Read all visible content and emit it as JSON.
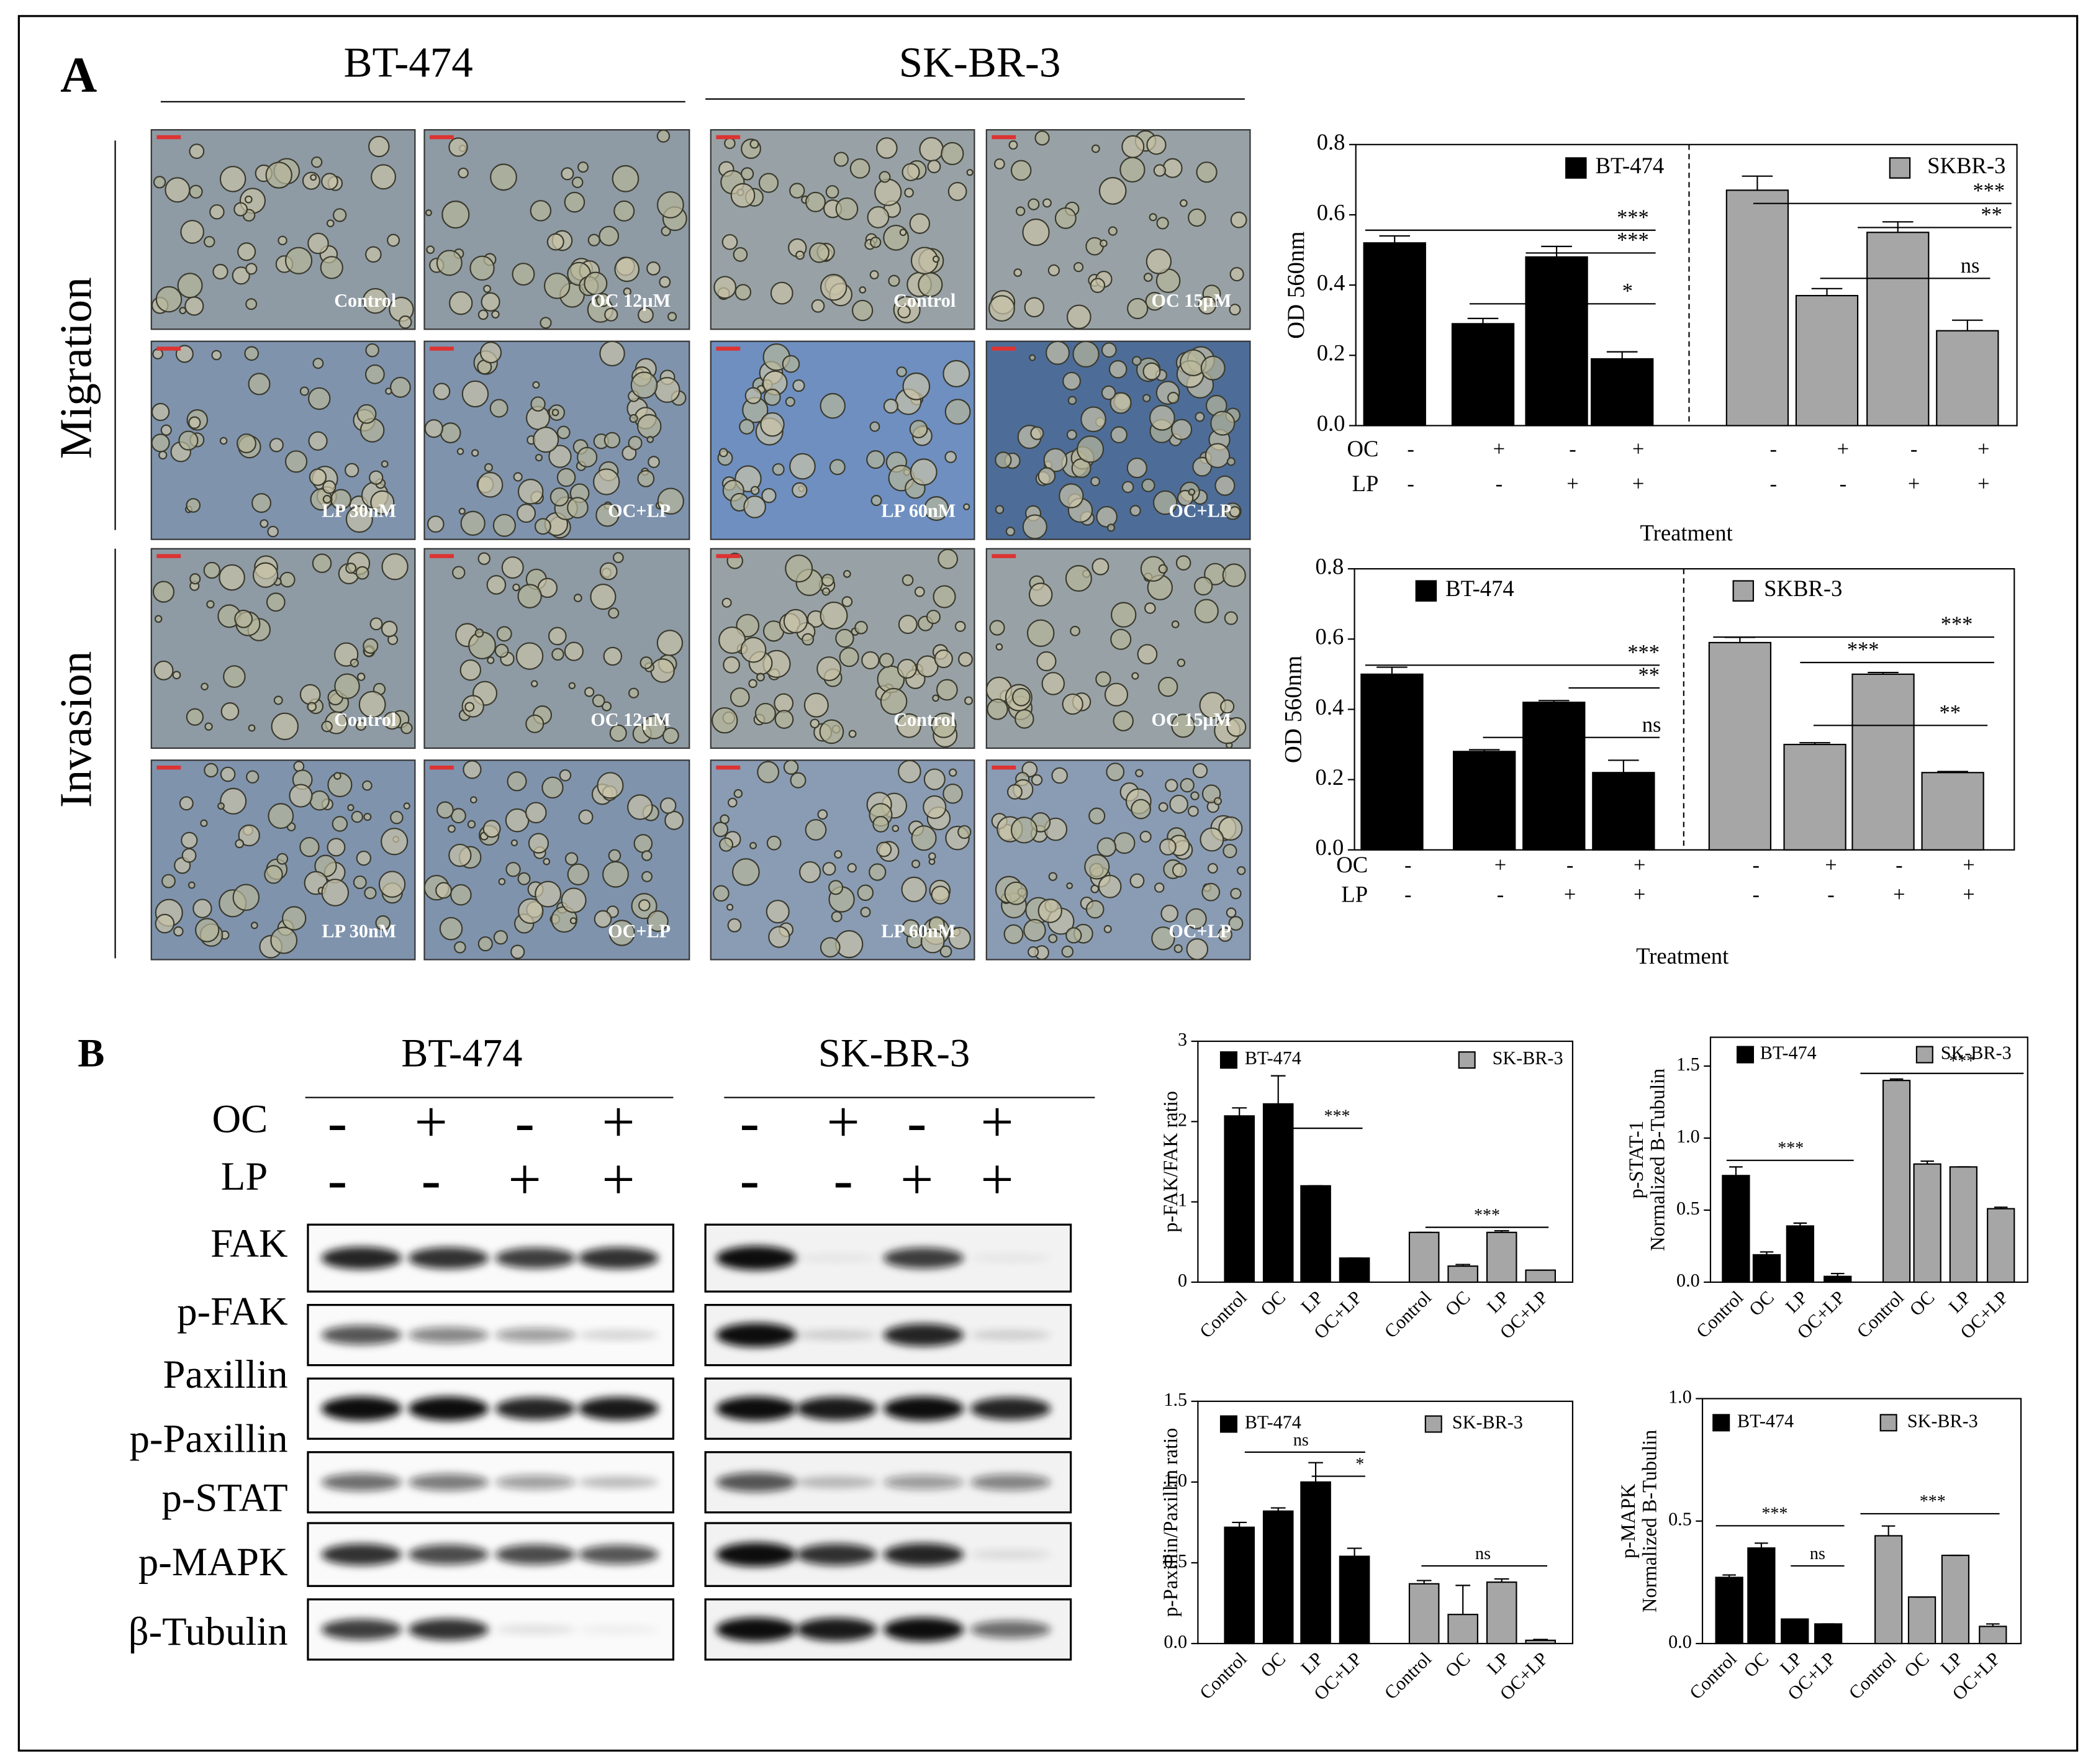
{
  "micrographs": {
    "title": "A",
    "cell_lines": [
      "BT-474",
      "SK-BR-3"
    ],
    "assays": [
      "Migration",
      "Invasion"
    ],
    "panel_labels": [
      [
        "Control",
        "OC 12µM",
        "Control",
        "OC 15µM"
      ],
      [
        "LP 30nM",
        "OC+LP",
        "LP 60nM",
        "OC+LP"
      ],
      [
        "Control",
        "OC 12µM",
        "Control",
        "OC 15µM"
      ],
      [
        "LP 30nM",
        "OC+LP",
        "LP 60nM",
        "OC+LP"
      ]
    ]
  },
  "western_blot": {
    "title": "B",
    "cell_lines": [
      "BT-474",
      "SK-BR-3"
    ],
    "treatments": [
      {
        "name": "OC",
        "signs": [
          "-",
          "+",
          "-",
          "+"
        ]
      },
      {
        "name": "LP",
        "signs": [
          "-",
          "-",
          "+",
          "+"
        ]
      }
    ],
    "proteins": [
      "FAK",
      "p-FAK",
      "Paxillin",
      "p-Paxillin",
      "p-STAT",
      "p-MAPK",
      "β-Tubulin"
    ]
  },
  "chart_data": [
    {
      "type": "bar",
      "ylabel": [
        "OD  560nm"
      ],
      "xlabel": "Treatment",
      "ylim": [
        0,
        0.8
      ],
      "yticks": [
        {
          "value": 0,
          "label": "0.0"
        },
        0.2,
        0.4,
        0.6,
        0.8
      ],
      "treatment_rows": [
        {
          "name": "OC",
          "signs": [
            "-",
            "+",
            "-",
            "+"
          ]
        },
        {
          "name": "LP",
          "signs": [
            "-",
            "-",
            "+",
            "+"
          ]
        }
      ],
      "series": [
        {
          "name": "BT-474",
          "color": "#000000",
          "values": [
            0.52,
            0.29,
            0.48,
            0.19
          ],
          "errors": [
            0.02,
            0.015,
            0.03,
            0.02
          ]
        },
        {
          "name": "SKBR-3",
          "color": "#a6a6a6",
          "values": [
            0.67,
            0.37,
            0.55,
            0.27
          ],
          "errors": [
            0.04,
            0.02,
            0.03,
            0.03
          ]
        }
      ],
      "annotations": [
        "***",
        "***",
        "*",
        "***",
        "**",
        "ns"
      ]
    },
    {
      "type": "bar",
      "ylabel": [
        "OD  560nm"
      ],
      "xlabel": "Treatment",
      "ylim": [
        0,
        0.8
      ],
      "yticks": [
        {
          "value": 0,
          "label": "0.0"
        },
        0.2,
        0.4,
        0.6,
        0.8
      ],
      "treatment_rows": [
        {
          "name": "OC",
          "signs": [
            "-",
            "+",
            "-",
            "+"
          ]
        },
        {
          "name": "LP",
          "signs": [
            "-",
            "-",
            "+",
            "+"
          ]
        }
      ],
      "series": [
        {
          "name": "BT-474",
          "color": "#000000",
          "values": [
            0.5,
            0.28,
            0.42,
            0.22
          ],
          "errors": [
            0.02,
            0.005,
            0.005,
            0.035
          ]
        },
        {
          "name": "SKBR-3",
          "color": "#a6a6a6",
          "values": [
            0.59,
            0.3,
            0.5,
            0.22
          ],
          "errors": [
            0.015,
            0.005,
            0.005,
            0.003
          ]
        }
      ],
      "annotations": [
        "***",
        "**",
        "ns",
        "***",
        "***",
        "**"
      ]
    },
    {
      "type": "bar",
      "ylabel": [
        "p-FAK/FAK ratio"
      ],
      "categories": [
        "Control",
        "OC",
        "LP",
        "OC+LP"
      ],
      "ylim": [
        0,
        3
      ],
      "yticks": [
        0,
        1,
        2,
        3
      ],
      "series": [
        {
          "name": "BT-474",
          "color": "#000000",
          "values": [
            2.07,
            2.22,
            1.2,
            0.3
          ],
          "errors": [
            0.1,
            0.35,
            0,
            0
          ]
        },
        {
          "name": "SK-BR-3",
          "color": "#a6a6a6",
          "values": [
            0.62,
            0.2,
            0.62,
            0.15
          ],
          "errors": [
            0,
            0.02,
            0.02,
            0
          ]
        }
      ],
      "annotations": [
        "***",
        "***"
      ]
    },
    {
      "type": "bar",
      "ylabel": [
        "p-STAT-1",
        "Normalized B-Tubulin"
      ],
      "categories": [
        "Control",
        "OC",
        "LP",
        "OC+LP"
      ],
      "ylim": [
        0,
        1.7
      ],
      "yticks": [
        {
          "value": 0,
          "label": "0.0"
        },
        0.5,
        {
          "value": 1,
          "label": "1.0"
        },
        1.5
      ],
      "series": [
        {
          "name": "BT-474",
          "color": "#000000",
          "values": [
            0.74,
            0.19,
            0.39,
            0.04
          ],
          "errors": [
            0.06,
            0.02,
            0.02,
            0.02
          ]
        },
        {
          "name": "SK-BR-3",
          "color": "#a6a6a6",
          "values": [
            1.4,
            0.82,
            0.8,
            0.51
          ],
          "errors": [
            0.01,
            0.02,
            0,
            0.01
          ]
        }
      ],
      "annotations": [
        "***",
        "***"
      ]
    },
    {
      "type": "bar",
      "ylabel": [
        "p-Paxillin/Paxillin ratio"
      ],
      "categories": [
        "Control",
        "OC",
        "LP",
        "OC+LP"
      ],
      "ylim": [
        0,
        1.5
      ],
      "yticks": [
        {
          "value": 0,
          "label": "0.0"
        },
        0.5,
        {
          "value": 1,
          "label": "1.0"
        },
        1.5
      ],
      "series": [
        {
          "name": "BT-474",
          "color": "#000000",
          "values": [
            0.72,
            0.82,
            1.0,
            0.54
          ],
          "errors": [
            0.03,
            0.02,
            0.12,
            0.05
          ]
        },
        {
          "name": "SK-BR-3",
          "color": "#a6a6a6",
          "values": [
            0.37,
            0.18,
            0.38,
            0.02
          ],
          "errors": [
            0.02,
            0.18,
            0.02,
            0.005
          ]
        }
      ],
      "annotations": [
        "ns",
        "*",
        "ns"
      ]
    },
    {
      "type": "bar",
      "ylabel": [
        "p-MAPK",
        "Normalized B-Tubulin"
      ],
      "categories": [
        "Control",
        "OC",
        "LP",
        "OC+LP"
      ],
      "ylim": [
        0,
        1
      ],
      "yticks": [
        {
          "value": 0,
          "label": "0.0"
        },
        0.5,
        {
          "value": 1,
          "label": "1.0"
        }
      ],
      "series": [
        {
          "name": "BT-474",
          "color": "#000000",
          "values": [
            0.27,
            0.39,
            0.1,
            0.08
          ],
          "errors": [
            0.01,
            0.02,
            0,
            0
          ]
        },
        {
          "name": "SK-BR-3",
          "color": "#a6a6a6",
          "values": [
            0.44,
            0.19,
            0.36,
            0.07
          ],
          "errors": [
            0.04,
            0,
            0,
            0.01
          ]
        }
      ],
      "annotations": [
        "***",
        "ns",
        "***"
      ]
    }
  ]
}
